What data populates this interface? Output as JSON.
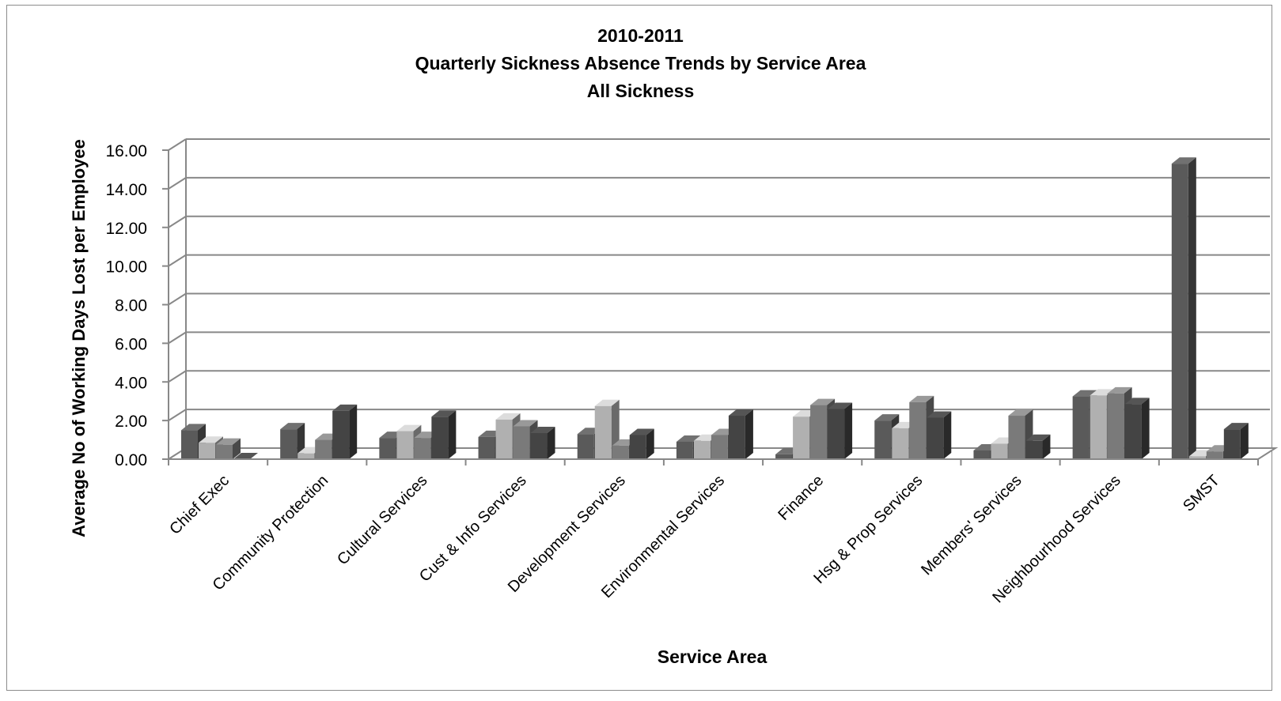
{
  "chart_data": {
    "type": "bar",
    "variant": "3d-clustered-column",
    "title_lines": [
      "2010-2011",
      "Quarterly Sickness Absence Trends by Service Area",
      "All Sickness"
    ],
    "xlabel": "Service Area",
    "ylabel": "Average No of Working Days Lost per Employee",
    "ylim": [
      0,
      16
    ],
    "yticks": [
      "0.00",
      "2.00",
      "4.00",
      "6.00",
      "8.00",
      "10.00",
      "12.00",
      "14.00",
      "16.00"
    ],
    "grid": true,
    "legend": "none",
    "categories": [
      "Chief Exec",
      "Community Protection",
      "Cultural Services",
      "Cust & Info Services",
      "Development Services",
      "Environmental Services",
      "Finance",
      "Hsg & Prop Services",
      "Members' Services",
      "Neighbourhood Services",
      "SMST"
    ],
    "series": [
      {
        "color": "#5a5a5a",
        "values": [
          1.5,
          1.55,
          1.1,
          1.15,
          1.3,
          0.9,
          0.25,
          2.0,
          0.45,
          3.25,
          15.3
        ]
      },
      {
        "color": "#b0b0b0",
        "values": [
          0.85,
          0.3,
          1.45,
          2.05,
          2.75,
          0.95,
          2.2,
          1.6,
          0.8,
          3.3,
          0.15
        ]
      },
      {
        "color": "#7a7a7a",
        "values": [
          0.75,
          1.0,
          1.1,
          1.7,
          0.7,
          1.25,
          2.8,
          2.95,
          2.25,
          3.4,
          0.4
        ]
      },
      {
        "color": "#444444",
        "values": [
          0.0,
          2.5,
          2.2,
          1.35,
          1.25,
          2.25,
          2.6,
          2.15,
          0.95,
          2.85,
          1.55
        ]
      }
    ]
  }
}
